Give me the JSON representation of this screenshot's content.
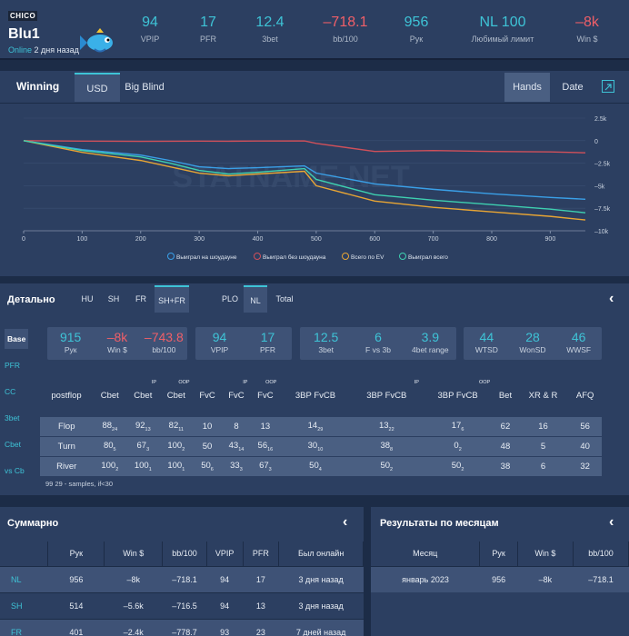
{
  "header": {
    "badge": "CHICO",
    "username": "Blu1",
    "online": "Online",
    "online_ago": "2 дня назад",
    "stats": [
      {
        "value": "94",
        "label": "VPIP",
        "color": "cyan"
      },
      {
        "value": "17",
        "label": "PFR",
        "color": "cyan"
      },
      {
        "value": "12.4",
        "label": "3bet",
        "color": "cyan"
      },
      {
        "value": "–718.1",
        "label": "bb/100",
        "color": "red"
      },
      {
        "value": "956",
        "label": "Рук",
        "color": "cyan"
      },
      {
        "value": "NL 100",
        "label": "Любимый лимит",
        "color": "cyan"
      },
      {
        "value": "–8k",
        "label": "Win $",
        "color": "red"
      }
    ]
  },
  "winning": {
    "title": "Winning",
    "tabs": [
      "USD",
      "Big Blind"
    ],
    "right_tabs": [
      "Hands",
      "Date"
    ],
    "watermark": "STATNAME.NET"
  },
  "chart_data": {
    "type": "line",
    "x": [
      0,
      100,
      200,
      250,
      300,
      350,
      400,
      480,
      500,
      600,
      700,
      800,
      900,
      960
    ],
    "x_ticks": [
      "0",
      "100",
      "200",
      "300",
      "400",
      "500",
      "600",
      "700",
      "800",
      "900"
    ],
    "y_ticks": [
      "2.5k",
      "0",
      "–2.5k",
      "–5k",
      "–7.5k",
      "–10k"
    ],
    "ylim": [
      -10000,
      2500
    ],
    "series": [
      {
        "name": "Выиграл на шоудауне",
        "color": "#3aa0e8",
        "values": [
          0,
          -1000,
          -1600,
          -2200,
          -2900,
          -3100,
          -3000,
          -2800,
          -3600,
          -4800,
          -5400,
          -5900,
          -6300,
          -6500
        ]
      },
      {
        "name": "Выиграл без шоудауна",
        "color": "#d0505a",
        "values": [
          0,
          -50,
          -80,
          -60,
          -50,
          -60,
          -40,
          -30,
          -300,
          -1200,
          -1100,
          -1200,
          -1250,
          -1350
        ]
      },
      {
        "name": "Всего по EV",
        "color": "#e8a534",
        "values": [
          0,
          -1300,
          -2200,
          -2900,
          -3600,
          -3900,
          -3700,
          -3400,
          -5000,
          -6700,
          -7400,
          -7900,
          -8400,
          -8800
        ]
      },
      {
        "name": "Выиграл всего",
        "color": "#3ed0b0",
        "values": [
          0,
          -1100,
          -1800,
          -2500,
          -3300,
          -3700,
          -3500,
          -3100,
          -4300,
          -6000,
          -6600,
          -7100,
          -7600,
          -8000
        ]
      }
    ]
  },
  "detail": {
    "title": "Детально",
    "tabs1": [
      "HU",
      "SH",
      "FR",
      "SH+FR"
    ],
    "tabs2": [
      "PLO",
      "NL",
      "Total"
    ],
    "side": [
      "Base",
      "PFR",
      "CC",
      "3bet",
      "Cbet",
      "vs Cb"
    ],
    "group1": [
      {
        "v": "915",
        "l": "Рук",
        "c": "cyan"
      },
      {
        "v": "–8k",
        "l": "Win $",
        "c": "red"
      },
      {
        "v": "–743.8",
        "l": "bb/100",
        "c": "red"
      }
    ],
    "group2": [
      {
        "v": "94",
        "l": "VPIP",
        "c": "cyan"
      },
      {
        "v": "17",
        "l": "PFR",
        "c": "cyan"
      }
    ],
    "group3": [
      {
        "v": "12.5",
        "l": "3bet",
        "c": "cyan"
      },
      {
        "v": "6",
        "l": "F vs 3b",
        "c": "cyan"
      },
      {
        "v": "3.9",
        "l": "4bet range",
        "c": "cyan"
      }
    ],
    "group4": [
      {
        "v": "44",
        "l": "WTSD",
        "c": "cyan"
      },
      {
        "v": "28",
        "l": "WonSD",
        "c": "cyan"
      },
      {
        "v": "46",
        "l": "WWSF",
        "c": "cyan"
      }
    ],
    "cols": [
      {
        "h": "postflop",
        "sup": ""
      },
      {
        "h": "Cbet",
        "sup": ""
      },
      {
        "h": "Cbet",
        "sup": "IP"
      },
      {
        "h": "Cbet",
        "sup": "OOP"
      },
      {
        "h": "FvC",
        "sup": ""
      },
      {
        "h": "FvC",
        "sup": "IP"
      },
      {
        "h": "FvC",
        "sup": "OOP"
      },
      {
        "h": "3BP FvCB",
        "sup": ""
      },
      {
        "h": "3BP FvCB",
        "sup": "IP"
      },
      {
        "h": "3BP FvCB",
        "sup": "OOP"
      },
      {
        "h": "Bet",
        "sup": ""
      },
      {
        "h": "XR & R",
        "sup": ""
      },
      {
        "h": "AFQ",
        "sup": ""
      }
    ],
    "rows": [
      {
        "name": "Flop",
        "cells": [
          [
            "88",
            "24"
          ],
          [
            "92",
            "13"
          ],
          [
            "82",
            "11"
          ],
          [
            "10",
            ""
          ],
          [
            "8",
            ""
          ],
          [
            "13",
            ""
          ],
          [
            "14",
            "29"
          ],
          [
            "13",
            "22"
          ],
          [
            "17",
            "6"
          ],
          [
            "62",
            ""
          ],
          [
            "16",
            ""
          ],
          [
            "56",
            ""
          ]
        ]
      },
      {
        "name": "Turn",
        "cells": [
          [
            "80",
            "5"
          ],
          [
            "67",
            "3"
          ],
          [
            "100",
            "2"
          ],
          [
            "50",
            ""
          ],
          [
            "43",
            "14"
          ],
          [
            "56",
            "16"
          ],
          [
            "30",
            "10"
          ],
          [
            "38",
            "8"
          ],
          [
            "0",
            "2"
          ],
          [
            "48",
            ""
          ],
          [
            "5",
            ""
          ],
          [
            "40",
            ""
          ]
        ]
      },
      {
        "name": "River",
        "cells": [
          [
            "100",
            "2"
          ],
          [
            "100",
            "1"
          ],
          [
            "100",
            "1"
          ],
          [
            "50",
            "6"
          ],
          [
            "33",
            "3"
          ],
          [
            "67",
            "3"
          ],
          [
            "50",
            "4"
          ],
          [
            "50",
            "2"
          ],
          [
            "50",
            "2"
          ],
          [
            "38",
            ""
          ],
          [
            "6",
            ""
          ],
          [
            "32",
            ""
          ]
        ]
      }
    ],
    "note": "29 - samples, if<30",
    "note_num": "99"
  },
  "summary": {
    "title": "Суммарно",
    "cols": [
      "",
      "Рук",
      "Win $",
      "bb/100",
      "VPIP",
      "PFR",
      "Был онлайн"
    ],
    "rows": [
      [
        "NL",
        "956",
        "–8k",
        "–718.1",
        "94",
        "17",
        "3 дня назад"
      ],
      [
        "SH",
        "514",
        "–5.6k",
        "–716.5",
        "94",
        "13",
        "3 дня назад"
      ],
      [
        "FR",
        "401",
        "–2.4k",
        "–778.7",
        "93",
        "23",
        "7 дней назад"
      ]
    ]
  },
  "monthly": {
    "title": "Результаты по месяцам",
    "cols": [
      "Месяц",
      "Рук",
      "Win $",
      "bb/100"
    ],
    "rows": [
      [
        "январь 2023",
        "956",
        "–8k",
        "–718.1"
      ]
    ]
  }
}
